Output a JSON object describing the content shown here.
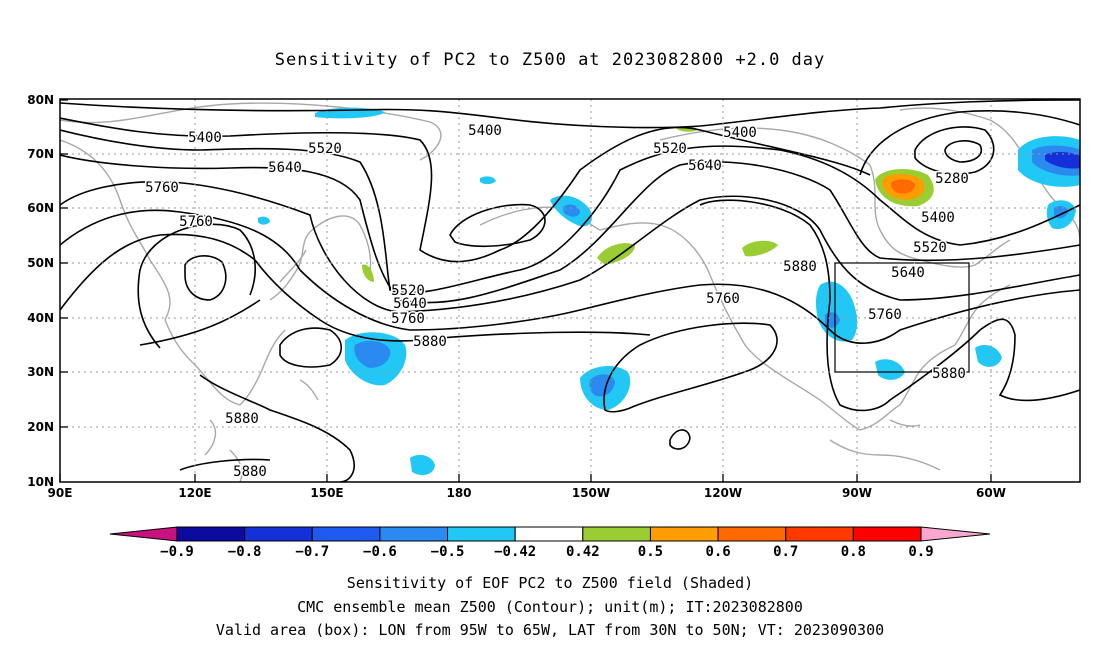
{
  "title": "Sensitivity of PC2 to Z500 at 2023082800 +2.0 day",
  "lon_ticks": [
    "90E",
    "120E",
    "150E",
    "180",
    "150W",
    "120W",
    "90W",
    "60W"
  ],
  "lat_ticks": [
    "80N",
    "70N",
    "60N",
    "50N",
    "40N",
    "30N",
    "20N",
    "10N"
  ],
  "colorbar": {
    "labels": [
      "−0.9",
      "−0.8",
      "−0.7",
      "−0.6",
      "−0.5",
      "−0.42",
      "0.42",
      "0.5",
      "0.6",
      "0.7",
      "0.8",
      "0.9"
    ],
    "colors": [
      "#0b0ba0",
      "#1430d8",
      "#1f5bf0",
      "#2a8af0",
      "#22c8f5",
      "#ffffff",
      "#9acd32",
      "#ff9c00",
      "#ff6a00",
      "#ff3a00",
      "#ff0000"
    ],
    "under_color": "#c8127e",
    "over_color": "#f8a8d0"
  },
  "contour_labels": [
    "5400",
    "5400",
    "5400",
    "5520",
    "5520",
    "5520",
    "5520",
    "5640",
    "5640",
    "5640",
    "5640",
    "5760",
    "5760",
    "5760",
    "5760",
    "5760",
    "5880",
    "5880",
    "5880",
    "5880",
    "5880",
    "5280",
    "5400"
  ],
  "valid_box": {
    "lon_west": -95,
    "lon_east": -65,
    "lat_south": 30,
    "lat_north": 50
  },
  "captions": [
    "Sensitivity of EOF PC2 to Z500 field (Shaded)",
    "CMC ensemble mean Z500 (Contour); unit(m); IT:2023082800",
    "Valid area (box): LON from 95W to 65W, LAT from 30N to 50N; VT: 2023090300"
  ]
}
